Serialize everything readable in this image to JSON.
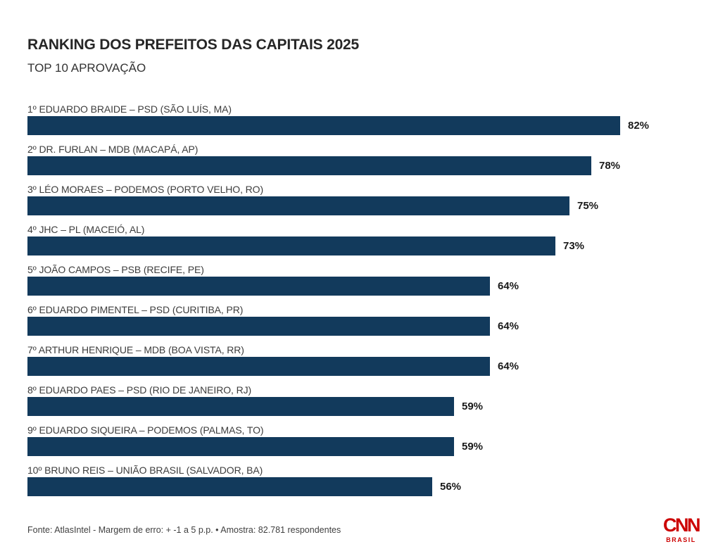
{
  "header": {
    "title": "RANKING DOS PREFEITOS DAS CAPITAIS 2025",
    "subtitle": "TOP 10 APROVAÇÃO"
  },
  "chart_data": {
    "type": "bar",
    "orientation": "horizontal",
    "title": "RANKING DOS PREFEITOS DAS CAPITAIS 2025",
    "subtitle": "TOP 10 APROVAÇÃO",
    "categories": [
      "1º EDUARDO BRAIDE – PSD (SÃO LUÍS, MA)",
      "2º DR. FURLAN – MDB (MACAPÁ, AP)",
      "3º LÉO MORAES – PODEMOS (PORTO VELHO, RO)",
      "4º JHC – PL (MACEIÓ, AL)",
      "5º JOÃO CAMPOS – PSB (RECIFE, PE)",
      "6º EDUARDO PIMENTEL – PSD (CURITIBA, PR)",
      "7º ARTHUR HENRIQUE – MDB (BOA VISTA, RR)",
      "8º EDUARDO PAES – PSD (RIO DE JANEIRO, RJ)",
      "9º EDUARDO SIQUEIRA – PODEMOS (PALMAS, TO)",
      "10º BRUNO REIS – UNIÃO BRASIL (SALVADOR, BA)"
    ],
    "values": [
      82,
      78,
      75,
      73,
      64,
      64,
      64,
      59,
      59,
      56
    ],
    "value_suffix": "%",
    "xlim": [
      0,
      100
    ],
    "grid": false,
    "legend": false,
    "bar_color": "#123a5c",
    "value_label_position": "outside-right"
  },
  "footer": {
    "source": "Fonte: AtlasIntel - Margem de erro: + -1 a 5 p.p. • Amostra: 82.781 respondentes"
  },
  "branding": {
    "logo_text": "CNN",
    "logo_subtext": "BRASIL",
    "logo_color": "#cc0000"
  }
}
